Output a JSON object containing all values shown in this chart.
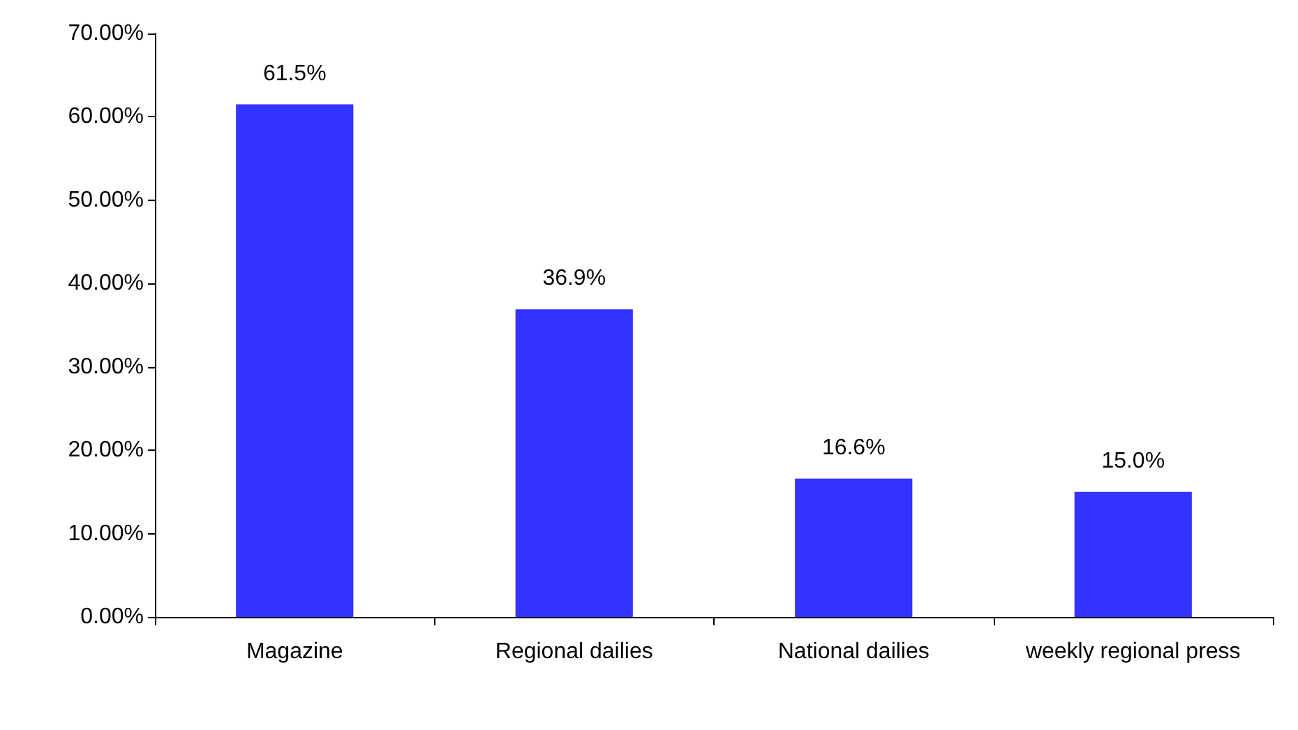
{
  "chart_data": {
    "type": "bar",
    "categories": [
      "Magazine",
      "Regional dailies",
      "National dailies",
      "weekly regional press"
    ],
    "values": [
      61.5,
      36.9,
      16.6,
      15.0
    ],
    "value_labels": [
      "61.5%",
      "36.9%",
      "16.6%",
      "15.0%"
    ],
    "color": "#3333ff",
    "ylim": [
      0,
      70
    ],
    "yticks": [
      {
        "value": 0,
        "label": "0.00%"
      },
      {
        "value": 10,
        "label": "10.00%"
      },
      {
        "value": 20,
        "label": "20.00%"
      },
      {
        "value": 30,
        "label": "30.00%"
      },
      {
        "value": 40,
        "label": "40.00%"
      },
      {
        "value": 50,
        "label": "50.00%"
      },
      {
        "value": 60,
        "label": "60.00%"
      },
      {
        "value": 70,
        "label": "70.00%"
      }
    ],
    "grid": false
  }
}
